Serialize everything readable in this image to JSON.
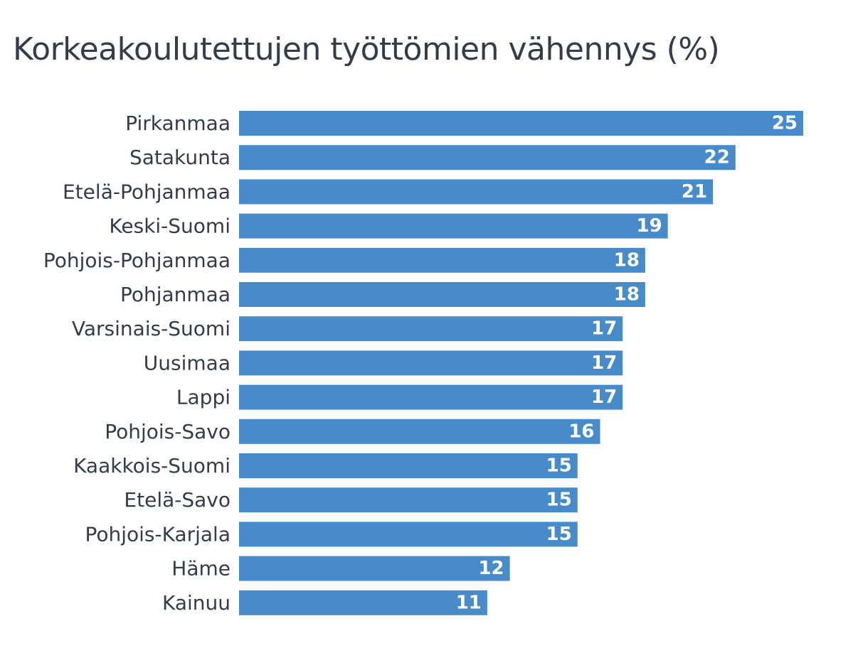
{
  "chart_data": {
    "type": "bar",
    "orientation": "horizontal",
    "title": "Korkeakoulutettujen työttömien vähennys (%)",
    "categories": [
      "Pirkanmaa",
      "Satakunta",
      "Etelä-Pohjanmaa",
      "Keski-Suomi",
      "Pohjois-Pohjanmaa",
      "Pohjanmaa",
      "Varsinais-Suomi",
      "Uusimaa",
      "Lappi",
      "Pohjois-Savo",
      "Kaakkois-Suomi",
      "Etelä-Savo",
      "Pohjois-Karjala",
      "Häme",
      "Kainuu"
    ],
    "values": [
      25,
      22,
      21,
      19,
      18,
      18,
      17,
      17,
      17,
      16,
      15,
      15,
      15,
      12,
      11
    ],
    "xlim": [
      0,
      25
    ],
    "grid": false,
    "bar_color": "#478bcb",
    "label_color": "#333c4a",
    "value_label_color": "#ffffff"
  }
}
